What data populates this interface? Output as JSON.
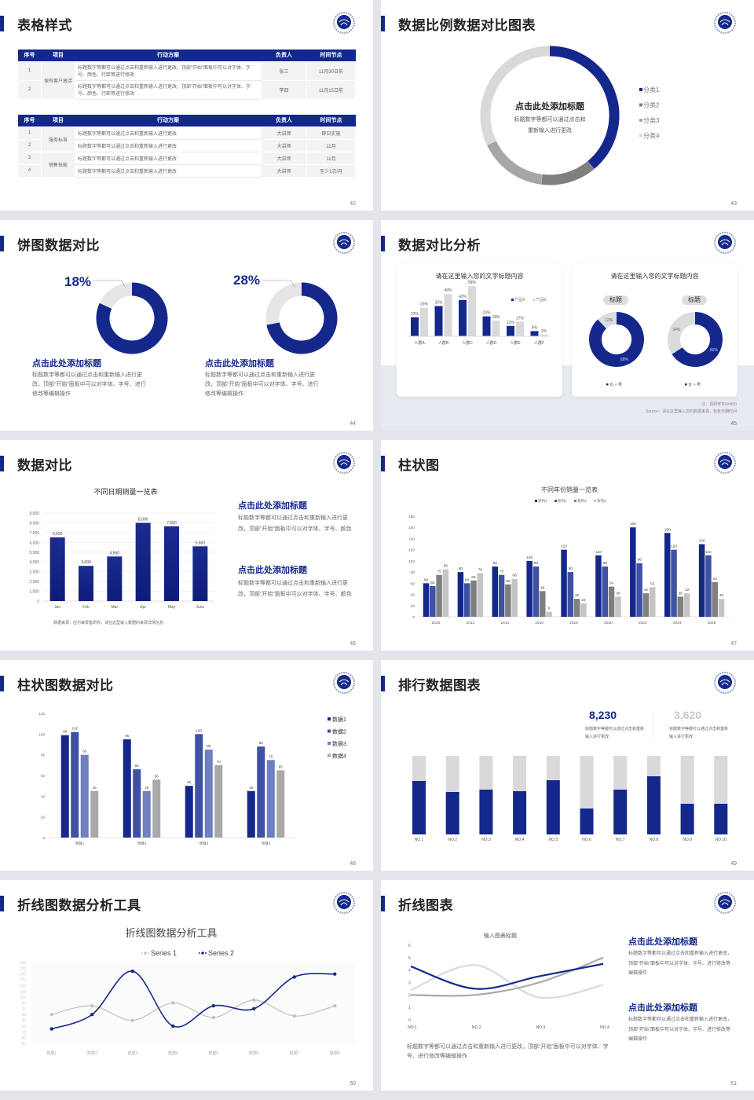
{
  "colors": {
    "navy": "#14288c",
    "blue2": "#3f51a3",
    "blue3": "#6f7fbf",
    "gray": "#a6a6a6",
    "darkgray": "#7f7f7f",
    "lightgray": "#d9d9d9"
  },
  "logo_icon": "emblem-globe-icon",
  "slides": [
    {
      "title": "表格样式",
      "page": "42",
      "table1": {
        "headers": [
          "序号",
          "项目",
          "行动方案",
          "负责人",
          "时间节点"
        ],
        "group": "保有客户激活",
        "rows": [
          [
            "1",
            "标题数字等都可以通过点击和重新输入进行更改，顶部“开始”面板中可以对字体、字号、颜色、行距等进行修改",
            "张三",
            "11月30日前"
          ],
          [
            "2",
            "标题数字等都可以通过点击和重新输入进行更改，顶部“开始”面板中可以对字体、字号、颜色、行距等进行修改",
            "李四",
            "11月15日前"
          ]
        ]
      },
      "table2": {
        "headers": [
          "序号",
          "项目",
          "行动方案",
          "负责人",
          "时间节点"
        ],
        "groups": [
          "服务标准",
          "销售技能"
        ],
        "rows": [
          [
            "1",
            "标题数字等都可以通过点击和重新输入进行更改",
            "大讲师",
            "即日实施"
          ],
          [
            "2",
            "标题数字等都可以通过点击和重新输入进行更改",
            "大讲师",
            "11月"
          ],
          [
            "3",
            "标题数字等都可以通过点击和重新输入进行更改",
            "大讲师",
            "11月"
          ],
          [
            "4",
            "标题数字等都可以通过点击和重新输入进行更改",
            "大讲师",
            "至少1次/月"
          ]
        ]
      }
    },
    {
      "title": "数据比例数据对比图表",
      "page": "43",
      "center_title": "点击此处添加标题",
      "center_text1": "标题数字等都可以通过点击和",
      "center_text2": "重新输入进行更改"
    },
    {
      "title": "饼图数据对比",
      "page": "44",
      "items": [
        {
          "percent": "18%",
          "heading": "点击此处添加标题",
          "body": "标题数字等都可以通过点击和重新输入进行更改，顶部“开始”面板中可以对字体、字号、进行修改等编辑操作"
        },
        {
          "percent": "28%",
          "heading": "点击此处添加标题",
          "body": "标题数字等都可以通过点击和重新输入进行更改，顶部“开始”面板中可以对字体、字号、进行修改等编辑操作"
        }
      ]
    },
    {
      "title": "数据对比分析",
      "page": "45",
      "card1_title": "请在这里输入您的文字标题内容",
      "card2_title": "请在这里输入您的文字标题内容",
      "tag1": "标题",
      "tag2": "标题",
      "note": "注：调研样本N=500",
      "source": "Source：请在这里输入您的数据来源，包含日期时间"
    },
    {
      "title": "数据对比",
      "page": "46",
      "source": "数据来源：应尔森零售研究，请在这里输入数据的来源详情信息",
      "blocks": [
        {
          "heading": "点击此处添加标题",
          "body": "标题数字等都可以通过点击和重新输入进行更改，顶部“开始”面板中可以对字体、字号、颜色"
        },
        {
          "heading": "点击此处添加标题",
          "body": "标题数字等都可以通过点击和重新输入进行更改，顶部“开始”面板中可以对字体、字号、颜色"
        }
      ]
    },
    {
      "title": "柱状图",
      "page": "47"
    },
    {
      "title": "柱状图数据对比",
      "page": "48"
    },
    {
      "title": "排行数据图表",
      "page": "49",
      "stats": [
        {
          "value": "8,230",
          "text": "标题数字等都可以通过点击和重新输入进行更改"
        },
        {
          "value": "3,620",
          "text": "标题数字等都可以通过点击和重新输入进行更改"
        }
      ]
    },
    {
      "title": "折线图数据分析工具",
      "page": "50"
    },
    {
      "title": "折线图表",
      "page": "51",
      "bottom_text": "标题数字等都可以通过点击和重新输入进行更改，顶部“开始”面板中可以对字体、字号、进行修改等编辑操作",
      "blocks": [
        {
          "heading": "点击此处添加标题",
          "body": "标题数字等都可以通过点击和重新输入进行更改，顶部“开始”面板中可以对字体、字号、进行修改等编辑操作"
        },
        {
          "heading": "点击此处添加标题",
          "body": "标题数字等都可以通过点击和重新输入进行更改，顶部“开始”面板中可以对字体、字号、进行修改等编辑操作"
        }
      ]
    }
  ],
  "chart_data": [
    {
      "id": "s43",
      "type": "pie",
      "donut": true,
      "categories": [
        "分类1",
        "分类2",
        "分类3",
        "分类4"
      ],
      "values": [
        0.39,
        0.13,
        0.16,
        0.32
      ],
      "legend": "right"
    },
    {
      "id": "s44a",
      "type": "pie",
      "donut": true,
      "values": [
        82,
        18
      ]
    },
    {
      "id": "s44b",
      "type": "pie",
      "donut": true,
      "values": [
        72,
        28
      ]
    },
    {
      "id": "s45bar",
      "type": "bar",
      "categories": [
        "人群A",
        "人群B",
        "人群C",
        "人群D",
        "人群E",
        "人群F"
      ],
      "series": [
        {
          "name": "产品A",
          "values": [
            22,
            35,
            42,
            23,
            12,
            6
          ]
        },
        {
          "name": "产品B",
          "values": [
            33,
            49,
            58,
            18,
            17,
            2
          ]
        }
      ],
      "unit": "%",
      "legend": "top-right"
    },
    {
      "id": "s45d1",
      "type": "pie",
      "donut": true,
      "categories": [
        "女",
        "男"
      ],
      "values": [
        88,
        12
      ],
      "unit": "%",
      "legend": "bottom"
    },
    {
      "id": "s45d2",
      "type": "pie",
      "donut": true,
      "categories": [
        "女",
        "男"
      ],
      "values": [
        66,
        34
      ],
      "unit": "%",
      "legend": "bottom"
    },
    {
      "id": "s46",
      "type": "bar",
      "title": "不同日期销量一览表",
      "categories": [
        "Jan",
        "Feb",
        "Mar",
        "Apr",
        "May",
        "June"
      ],
      "values": [
        6520,
        3600,
        4560,
        8000,
        7650,
        5600
      ],
      "ylim": [
        0,
        9000
      ],
      "yticks": [
        0,
        1000,
        2000,
        3000,
        4000,
        5000,
        6000,
        7000,
        8000,
        9000
      ],
      "grid": true
    },
    {
      "id": "s47",
      "type": "bar",
      "title": "不同年份销量一览表",
      "categories": [
        "2010",
        "2012",
        "2014",
        "2016",
        "2018",
        "2020",
        "2022",
        "2024",
        "2026"
      ],
      "series": [
        {
          "name": "系列1",
          "values": [
            60,
            80,
            90,
            100,
            120,
            110,
            160,
            150,
            130
          ]
        },
        {
          "name": "系列2",
          "values": [
            55,
            60,
            75,
            90,
            80,
            90,
            96,
            120,
            110
          ]
        },
        {
          "name": "系列3",
          "values": [
            75,
            65,
            58,
            46,
            32,
            54,
            42,
            36,
            62
          ]
        },
        {
          "name": "系列4",
          "values": [
            85,
            78,
            68,
            9,
            24,
            36,
            53,
            42,
            32
          ]
        }
      ],
      "ylim": [
        0,
        180
      ],
      "yticks": [
        0,
        20,
        40,
        60,
        80,
        100,
        120,
        140,
        160,
        180
      ],
      "legend": "top"
    },
    {
      "id": "s48",
      "type": "bar",
      "categories": [
        "项目1",
        "项目2",
        "项目3",
        "项目4"
      ],
      "series": [
        {
          "name": "数据1",
          "values": [
            99,
            95,
            50,
            45
          ]
        },
        {
          "name": "数据2",
          "values": [
            102,
            66,
            100,
            88
          ]
        },
        {
          "name": "数据3",
          "values": [
            80,
            45,
            85,
            75
          ]
        },
        {
          "name": "数据4",
          "values": [
            45,
            56,
            70,
            65
          ]
        }
      ],
      "ylim": [
        0,
        120
      ],
      "yticks": [
        0,
        20,
        40,
        60,
        80,
        100,
        120
      ],
      "legend": "right"
    },
    {
      "id": "s49",
      "type": "bar",
      "stacked_percent": true,
      "categories": [
        "NO.1",
        "NO.2",
        "NO.3",
        "NO.4",
        "NO.5",
        "NO.6",
        "NO.7",
        "NO.8",
        "NO.9",
        "NO.10"
      ],
      "values": [
        0.68,
        0.54,
        0.57,
        0.55,
        0.69,
        0.33,
        0.57,
        0.74,
        0.39,
        0.39
      ]
    },
    {
      "id": "s50",
      "type": "line",
      "title": "折线图数据分析工具",
      "categories": [
        "数据1",
        "数据2",
        "数据3",
        "数据4",
        "数据5",
        "数据6",
        "数据7",
        "数据8"
      ],
      "series": [
        {
          "name": "Series 1",
          "values": [
            50,
            80,
            30,
            90,
            40,
            100,
            45,
            80
          ]
        },
        {
          "name": "Series 2",
          "values": [
            0,
            50,
            200,
            10,
            80,
            70,
            180,
            190
          ]
        }
      ],
      "ylim": [
        -50,
        230
      ],
      "yticks": [
        -50,
        -30,
        -10,
        10,
        30,
        50,
        70,
        90,
        110,
        130,
        150,
        170,
        190,
        210,
        230
      ],
      "legend": "top"
    },
    {
      "id": "s51",
      "type": "line",
      "title": "输入图表标题",
      "categories": [
        "NO.1",
        "NO.2",
        "NO.3",
        "NO.4"
      ],
      "series": [
        {
          "values": [
            4.3,
            2.5,
            3.5,
            4.5
          ]
        },
        {
          "values": [
            2.4,
            4.4,
            1.8,
            2.8
          ]
        },
        {
          "values": [
            2.0,
            2.0,
            3.0,
            5.0
          ]
        }
      ],
      "ylim": [
        0,
        6
      ],
      "yticks": [
        0,
        1,
        2,
        3,
        4,
        5,
        6
      ]
    }
  ]
}
